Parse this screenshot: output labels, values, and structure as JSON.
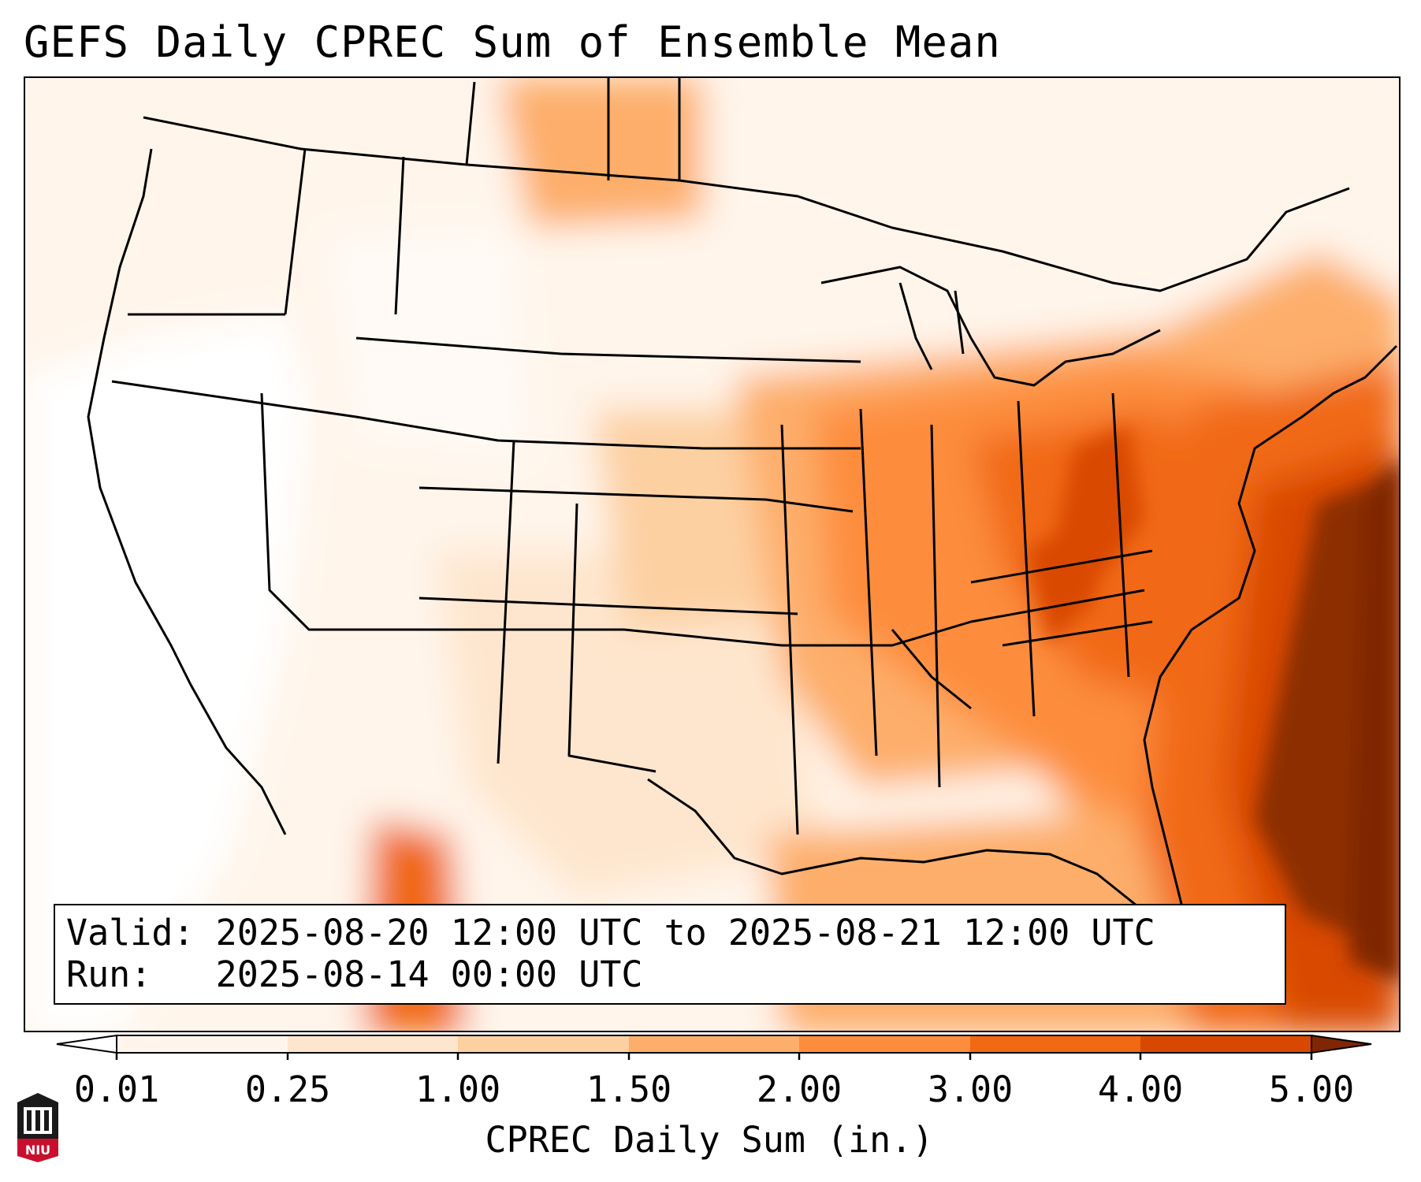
{
  "title": "GEFS Daily CPREC Sum of Ensemble Mean",
  "info": {
    "valid": "Valid: 2025-08-20 12:00 UTC to 2025-08-21 12:00 UTC",
    "run": "Run:   2025-08-14 00:00 UTC"
  },
  "colorbar": {
    "label": "CPREC Daily Sum (in.)",
    "ticks": [
      "0.01",
      "0.25",
      "1.00",
      "1.50",
      "2.00",
      "3.00",
      "4.00",
      "5.00"
    ],
    "colors": [
      "#fff5eb",
      "#fee6ce",
      "#fdd0a2",
      "#fdae6b",
      "#fd8d3c",
      "#f16913",
      "#d94801",
      "#8c2d04"
    ],
    "under_color": "#ffffff",
    "over_color": "#7f2704"
  },
  "logo": {
    "text": "NIU",
    "color": "#c8102e"
  },
  "map": {
    "region": "Contiguous United States",
    "heaviest_area": "Western Atlantic off the Southeast coast"
  }
}
